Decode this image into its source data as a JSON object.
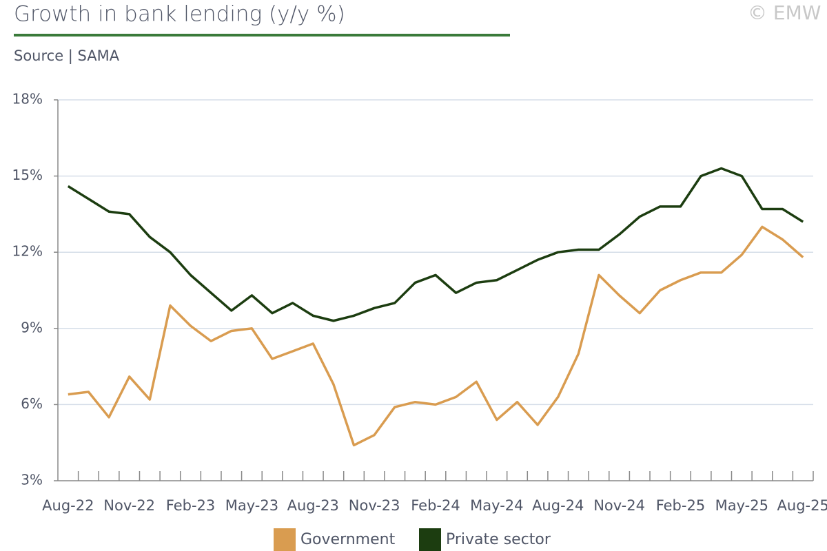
{
  "chart_data": {
    "type": "line",
    "title": "Growth in bank lending (y/y %)",
    "subtitle": "Source | SAMA",
    "watermark": "© EMW",
    "categories": [
      "Aug-22",
      null,
      null,
      "Nov-22",
      null,
      null,
      "Feb-23",
      null,
      null,
      "May-23",
      null,
      null,
      "Aug-23",
      null,
      null,
      "Nov-23",
      null,
      null,
      "Feb-24",
      null,
      null,
      "May-24",
      null,
      null,
      "Aug-24",
      null,
      null,
      "Nov-24",
      null,
      null,
      "Feb-25",
      null,
      null,
      "May-25",
      null,
      null,
      "Aug-25"
    ],
    "series": [
      {
        "name": "Government",
        "color": "#d99c50",
        "values": [
          6.4,
          6.5,
          5.5,
          7.1,
          6.2,
          9.9,
          9.1,
          8.5,
          8.9,
          9.0,
          7.8,
          8.1,
          8.4,
          6.8,
          4.4,
          4.8,
          5.9,
          6.1,
          6.0,
          6.3,
          6.9,
          5.4,
          6.1,
          5.2,
          6.3,
          8.0,
          11.1,
          10.3,
          9.6,
          10.5,
          10.9,
          11.2,
          11.2,
          11.9,
          13.0,
          12.5,
          11.8
        ]
      },
      {
        "name": "Private sector",
        "color": "#1c3d10",
        "values": [
          14.6,
          14.1,
          13.6,
          13.5,
          12.6,
          12.0,
          11.1,
          10.4,
          9.7,
          10.3,
          9.6,
          10.0,
          9.5,
          9.3,
          9.5,
          9.8,
          10.0,
          10.8,
          11.1,
          10.4,
          10.8,
          10.9,
          11.3,
          11.7,
          12.0,
          12.1,
          12.1,
          12.7,
          13.4,
          13.8,
          13.8,
          15.0,
          15.3,
          15.0,
          13.7,
          13.7,
          13.2
        ]
      }
    ],
    "ylim": [
      3,
      18
    ],
    "yticks": [
      {
        "value": 3,
        "label": "3%"
      },
      {
        "value": 6,
        "label": "6%"
      },
      {
        "value": 9,
        "label": "9%"
      },
      {
        "value": 12,
        "label": "12%"
      },
      {
        "value": 15,
        "label": "15%"
      },
      {
        "value": 18,
        "label": "18%"
      }
    ],
    "grid": true,
    "legend": "bottom"
  }
}
